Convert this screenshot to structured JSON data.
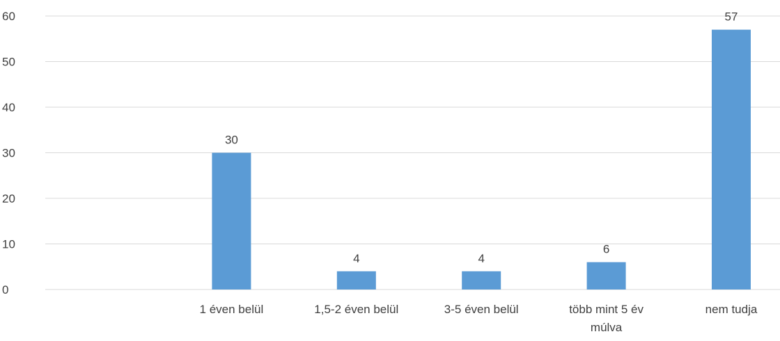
{
  "chart_data": {
    "type": "bar",
    "categories": [
      "",
      "1 éven belül",
      "1,5-2 éven belül",
      "3-5 éven belül",
      "több mint 5 év múlva",
      "nem tudja"
    ],
    "category_lines": [
      [
        ""
      ],
      [
        "1 éven belül"
      ],
      [
        "1,5-2 éven belül"
      ],
      [
        "3-5 éven belül"
      ],
      [
        "több mint 5 év",
        "múlva"
      ],
      [
        "nem tudja"
      ]
    ],
    "values": [
      null,
      30,
      4,
      4,
      6,
      57
    ],
    "data_labels": [
      "",
      "30",
      "4",
      "4",
      "6",
      "57"
    ],
    "ylim": [
      0,
      60
    ],
    "yticks": [
      0,
      10,
      20,
      30,
      40,
      50,
      60
    ],
    "grid": true,
    "bar_color": "#5B9BD5",
    "grid_color": "#D9D9D9",
    "text_color": "#404040",
    "title": "",
    "xlabel": "",
    "ylabel": ""
  }
}
